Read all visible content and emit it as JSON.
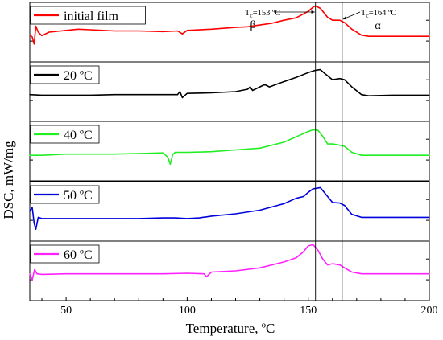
{
  "chart_data": {
    "type": "line",
    "ylabel": "DSC, mW/mg",
    "xlabel": "Temperature, ºC",
    "xlim": [
      35,
      200
    ],
    "xticks": [
      50,
      100,
      150,
      200
    ],
    "annotations": {
      "tc1": {
        "label": "T",
        "sub": "c",
        "value_text": "=153 ºC",
        "x": 153,
        "phase": "β"
      },
      "tc2": {
        "label": "T",
        "sub": "c",
        "value_text": "=164 ºC",
        "x": 164,
        "phase": "α"
      }
    },
    "series": [
      {
        "name": "initial film",
        "color": "#ff0000",
        "points": [
          [
            35,
            0.55
          ],
          [
            36,
            0.58
          ],
          [
            36.8,
            0.7
          ],
          [
            37.5,
            0.4
          ],
          [
            38.5,
            0.5
          ],
          [
            40,
            0.56
          ],
          [
            43,
            0.5
          ],
          [
            50,
            0.47
          ],
          [
            55,
            0.45
          ],
          [
            60,
            0.46
          ],
          [
            70,
            0.48
          ],
          [
            80,
            0.48
          ],
          [
            90,
            0.49
          ],
          [
            96,
            0.48
          ],
          [
            98,
            0.53
          ],
          [
            100,
            0.47
          ],
          [
            110,
            0.45
          ],
          [
            120,
            0.42
          ],
          [
            125,
            0.41
          ],
          [
            130,
            0.38
          ],
          [
            135,
            0.35
          ],
          [
            140,
            0.3
          ],
          [
            145,
            0.26
          ],
          [
            150,
            0.15
          ],
          [
            152,
            0.08
          ],
          [
            153,
            0.06
          ],
          [
            155,
            0.1
          ],
          [
            158,
            0.25
          ],
          [
            160,
            0.3
          ],
          [
            163,
            0.3
          ],
          [
            165,
            0.34
          ],
          [
            168,
            0.45
          ],
          [
            172,
            0.55
          ],
          [
            175,
            0.57
          ],
          [
            185,
            0.57
          ],
          [
            200,
            0.57
          ]
        ]
      },
      {
        "name": "20 ºC",
        "color": "#000000",
        "points": [
          [
            35,
            0.55
          ],
          [
            40,
            0.56
          ],
          [
            50,
            0.56
          ],
          [
            60,
            0.56
          ],
          [
            70,
            0.55
          ],
          [
            80,
            0.55
          ],
          [
            90,
            0.55
          ],
          [
            96,
            0.55
          ],
          [
            97,
            0.5
          ],
          [
            98,
            0.6
          ],
          [
            100,
            0.53
          ],
          [
            110,
            0.52
          ],
          [
            120,
            0.5
          ],
          [
            125,
            0.46
          ],
          [
            126,
            0.42
          ],
          [
            127,
            0.48
          ],
          [
            130,
            0.42
          ],
          [
            132,
            0.38
          ],
          [
            134,
            0.42
          ],
          [
            138,
            0.36
          ],
          [
            145,
            0.26
          ],
          [
            150,
            0.18
          ],
          [
            153,
            0.14
          ],
          [
            155,
            0.13
          ],
          [
            157,
            0.2
          ],
          [
            160,
            0.3
          ],
          [
            163,
            0.28
          ],
          [
            165,
            0.3
          ],
          [
            168,
            0.42
          ],
          [
            172,
            0.55
          ],
          [
            175,
            0.57
          ],
          [
            185,
            0.56
          ],
          [
            200,
            0.56
          ]
        ]
      },
      {
        "name": "40 ºC",
        "color": "#22ee22",
        "points": [
          [
            35,
            0.57
          ],
          [
            40,
            0.57
          ],
          [
            50,
            0.55
          ],
          [
            60,
            0.55
          ],
          [
            70,
            0.55
          ],
          [
            80,
            0.54
          ],
          [
            90,
            0.53
          ],
          [
            92,
            0.6
          ],
          [
            93,
            0.72
          ],
          [
            94,
            0.56
          ],
          [
            95,
            0.52
          ],
          [
            100,
            0.52
          ],
          [
            110,
            0.51
          ],
          [
            120,
            0.48
          ],
          [
            130,
            0.45
          ],
          [
            140,
            0.35
          ],
          [
            145,
            0.26
          ],
          [
            150,
            0.17
          ],
          [
            152,
            0.14
          ],
          [
            154,
            0.15
          ],
          [
            156,
            0.25
          ],
          [
            158,
            0.38
          ],
          [
            160,
            0.38
          ],
          [
            163,
            0.4
          ],
          [
            165,
            0.42
          ],
          [
            168,
            0.52
          ],
          [
            172,
            0.57
          ],
          [
            180,
            0.57
          ],
          [
            200,
            0.57
          ]
        ]
      },
      {
        "name": "50 ºC",
        "color": "#0000dd",
        "points": [
          [
            35,
            0.5
          ],
          [
            36,
            0.43
          ],
          [
            36.8,
            0.7
          ],
          [
            37.5,
            0.8
          ],
          [
            38.5,
            0.6
          ],
          [
            40,
            0.62
          ],
          [
            45,
            0.62
          ],
          [
            50,
            0.62
          ],
          [
            60,
            0.62
          ],
          [
            70,
            0.62
          ],
          [
            80,
            0.62
          ],
          [
            90,
            0.61
          ],
          [
            95,
            0.61
          ],
          [
            100,
            0.62
          ],
          [
            105,
            0.61
          ],
          [
            110,
            0.58
          ],
          [
            120,
            0.54
          ],
          [
            130,
            0.48
          ],
          [
            140,
            0.37
          ],
          [
            145,
            0.28
          ],
          [
            148,
            0.25
          ],
          [
            150,
            0.18
          ],
          [
            152,
            0.12
          ],
          [
            155,
            0.1
          ],
          [
            157,
            0.2
          ],
          [
            160,
            0.35
          ],
          [
            163,
            0.36
          ],
          [
            165,
            0.4
          ],
          [
            168,
            0.55
          ],
          [
            172,
            0.6
          ],
          [
            180,
            0.6
          ],
          [
            200,
            0.6
          ]
        ]
      },
      {
        "name": "60 ºC",
        "color": "#ff22ff",
        "points": [
          [
            35,
            0.55
          ],
          [
            36,
            0.65
          ],
          [
            37,
            0.48
          ],
          [
            38,
            0.55
          ],
          [
            40,
            0.56
          ],
          [
            50,
            0.55
          ],
          [
            60,
            0.55
          ],
          [
            70,
            0.55
          ],
          [
            80,
            0.55
          ],
          [
            90,
            0.55
          ],
          [
            100,
            0.54
          ],
          [
            107,
            0.55
          ],
          [
            108,
            0.6
          ],
          [
            110,
            0.52
          ],
          [
            120,
            0.5
          ],
          [
            130,
            0.45
          ],
          [
            140,
            0.35
          ],
          [
            145,
            0.28
          ],
          [
            148,
            0.18
          ],
          [
            150,
            0.08
          ],
          [
            152,
            0.06
          ],
          [
            154,
            0.15
          ],
          [
            156,
            0.3
          ],
          [
            158,
            0.4
          ],
          [
            160,
            0.38
          ],
          [
            163,
            0.4
          ],
          [
            165,
            0.45
          ],
          [
            168,
            0.52
          ],
          [
            172,
            0.55
          ],
          [
            180,
            0.55
          ],
          [
            200,
            0.55
          ]
        ]
      }
    ]
  }
}
